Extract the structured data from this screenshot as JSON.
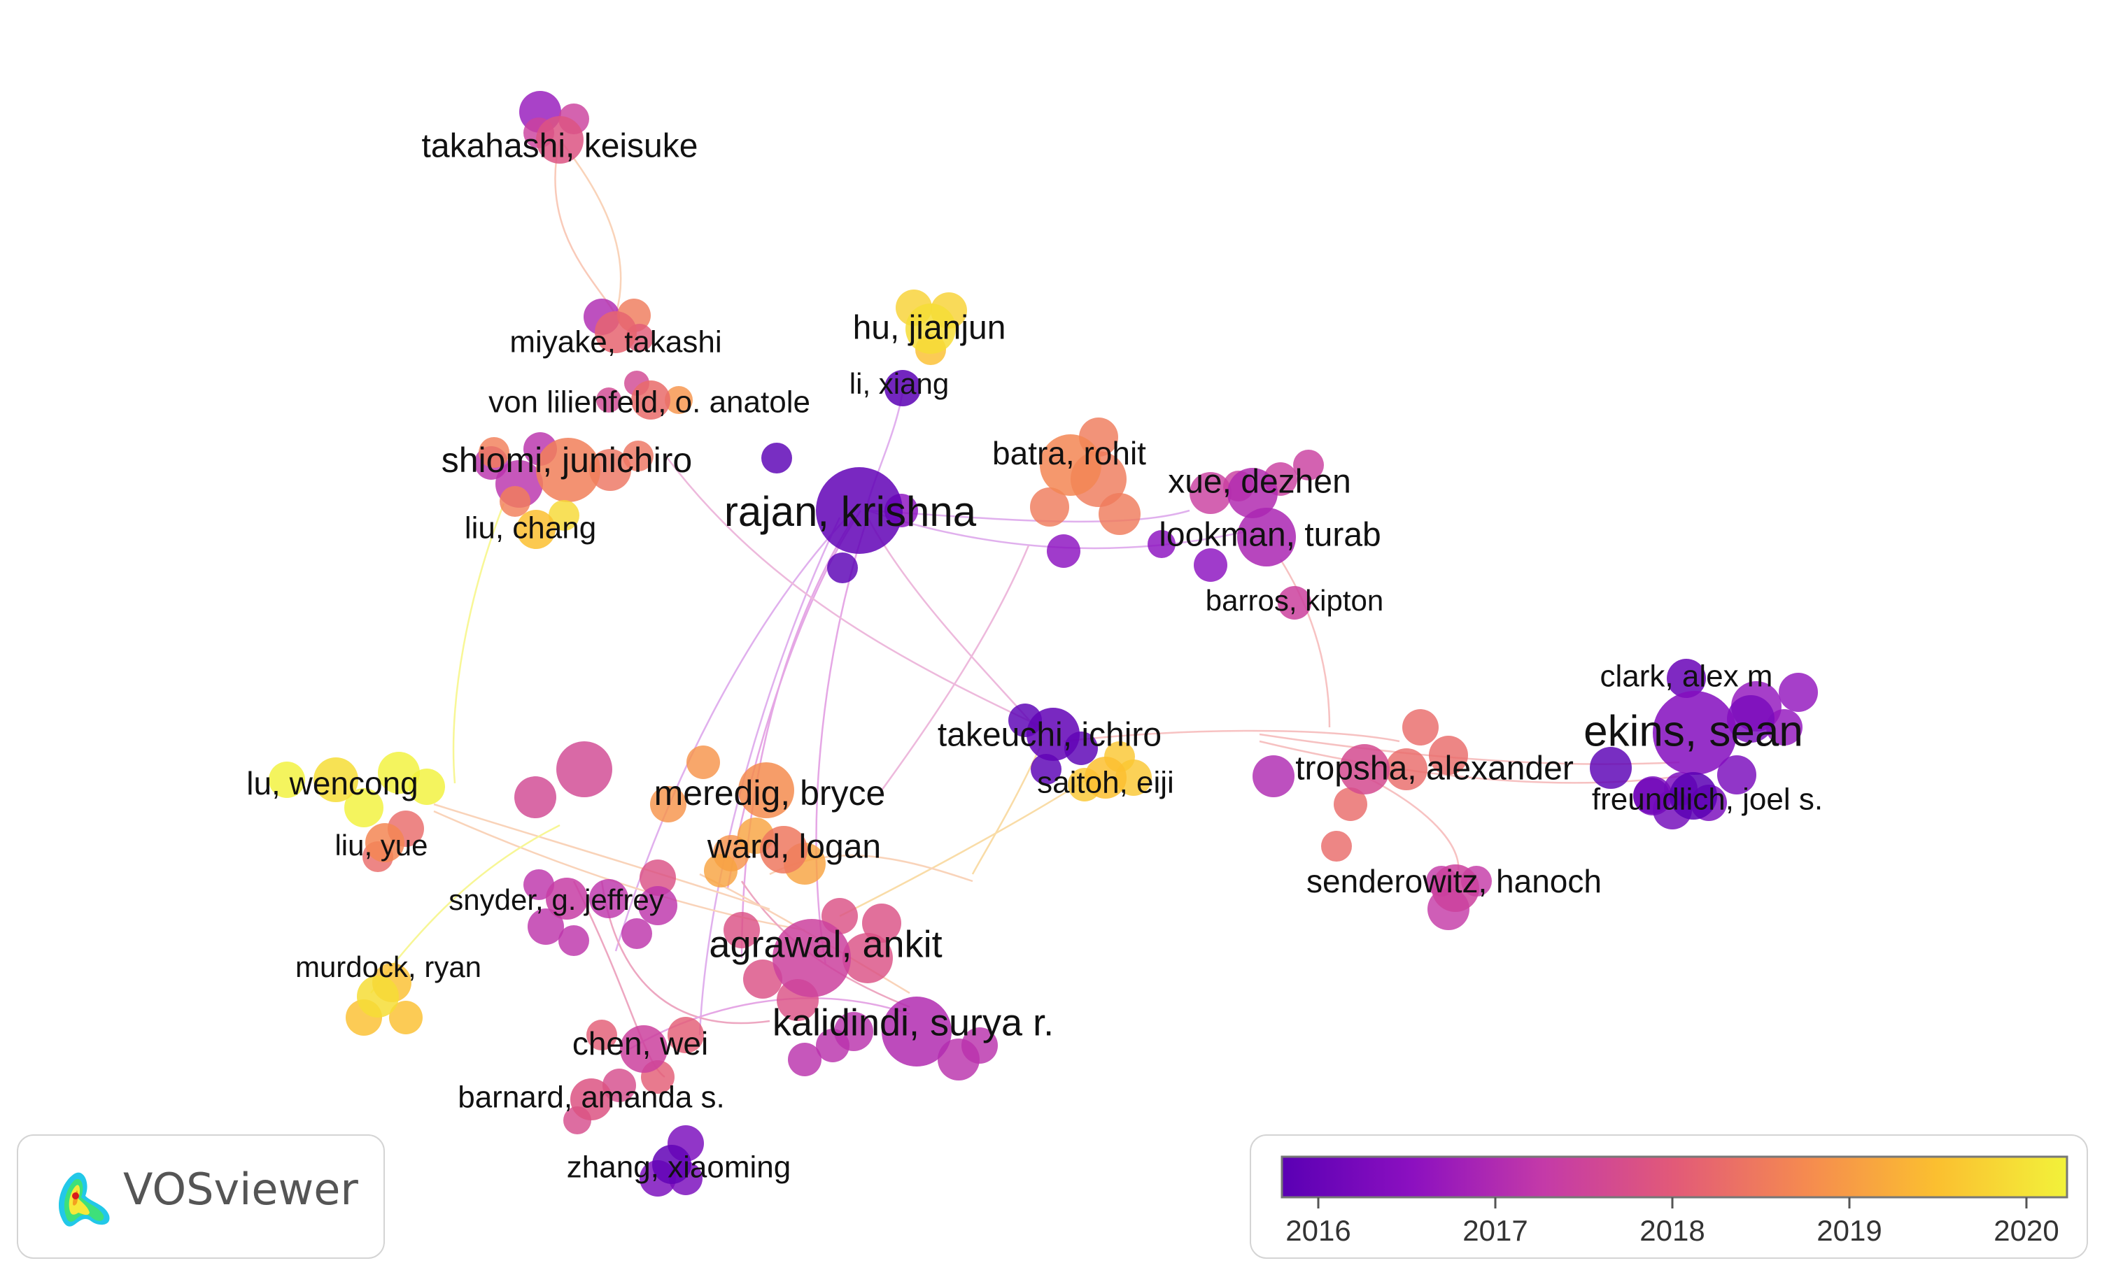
{
  "app_name": "VOSviewer",
  "overlay_legend": {
    "ticks": [
      "2016",
      "2017",
      "2018",
      "2019",
      "2020"
    ],
    "colormap": [
      "#5a00b4",
      "#8c10c0",
      "#c43aa8",
      "#e25a78",
      "#f58a50",
      "#fbbf30",
      "#f2f23a"
    ]
  },
  "authors": [
    {
      "label": "takahashi, keisuke",
      "year": 2018.0
    },
    {
      "label": "miyake, takashi",
      "year": 2018.3
    },
    {
      "label": "von lilienfeld, o. anatole",
      "year": 2018.4
    },
    {
      "label": "shiomi, junichiro",
      "year": 2018.7
    },
    {
      "label": "liu, chang",
      "year": 2019.6
    },
    {
      "label": "hu, jianjun",
      "year": 2020.0
    },
    {
      "label": "li, xiang",
      "year": 2016.0
    },
    {
      "label": "rajan, krishna",
      "year": 2016.1
    },
    {
      "label": "batra, rohit",
      "year": 2018.8
    },
    {
      "label": "xue, dezhen",
      "year": 2017.2
    },
    {
      "label": "lookman, turab",
      "year": 2017.1
    },
    {
      "label": "barros, kipton",
      "year": 2017.6
    },
    {
      "label": "clark, alex m",
      "year": 2016.2
    },
    {
      "label": "ekins, sean",
      "year": 2016.6
    },
    {
      "label": "freundlich, joel s.",
      "year": 2016.0
    },
    {
      "label": "takeuchi, ichiro",
      "year": 2016.1
    },
    {
      "label": "saitoh, eiji",
      "year": 2019.6
    },
    {
      "label": "tropsha, alexander",
      "year": 2017.8
    },
    {
      "label": "senderowitz, hanoch",
      "year": 2017.6
    },
    {
      "label": "lu, wencong",
      "year": 2020.0
    },
    {
      "label": "liu, yue",
      "year": 2018.8
    },
    {
      "label": "meredig, bryce",
      "year": 2018.9
    },
    {
      "label": "ward, logan",
      "year": 2018.6
    },
    {
      "label": "snyder, g. jeffrey",
      "year": 2017.5
    },
    {
      "label": "agrawal, ankit",
      "year": 2017.6
    },
    {
      "label": "murdock, ryan",
      "year": 2020.0
    },
    {
      "label": "kalidindi, surya r.",
      "year": 2017.2
    },
    {
      "label": "chen, wei",
      "year": 2017.6
    },
    {
      "label": "barnard, amanda s.",
      "year": 2018.0
    },
    {
      "label": "zhang, xiaoming",
      "year": 2016.1
    }
  ]
}
